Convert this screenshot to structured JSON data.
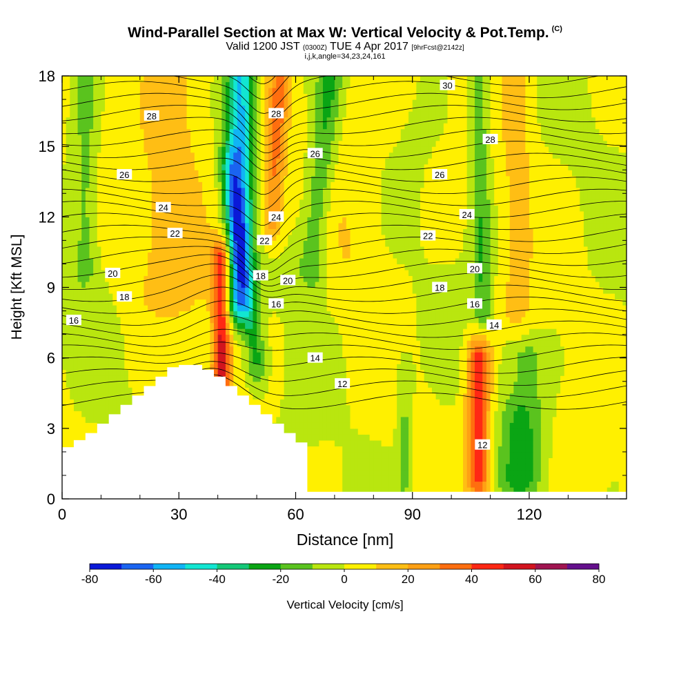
{
  "header": {
    "title": "Wind-Parallel Section at Max W: Vertical Velocity & Pot.Temp.",
    "title_badge": "(C)",
    "subtitle_valid": "Valid 1200 JST",
    "subtitle_utc": "(0300Z)",
    "subtitle_date": "TUE 4 Apr 2017",
    "subtitle_fcst": "[9hrFcst@2142z]",
    "indices": "i,j,k,angle=34,23,24,161"
  },
  "chart_data": {
    "type": "heatmap",
    "title": "Wind-Parallel Section at Max W: Vertical Velocity & Pot.Temp.",
    "xlabel": "Distance [nm]",
    "ylabel": "Height [Kft MSL]",
    "xlim": [
      0,
      145
    ],
    "ylim": [
      0,
      18
    ],
    "x_ticks": [
      "0",
      "30",
      "60",
      "90",
      "120"
    ],
    "x_tick_values": [
      0,
      30,
      60,
      90,
      120
    ],
    "y_ticks": [
      "0",
      "3",
      "6",
      "9",
      "12",
      "15",
      "18"
    ],
    "y_tick_values": [
      0,
      3,
      6,
      9,
      12,
      15,
      18
    ],
    "colorbar": {
      "label": "Vertical Velocity [cm/s]",
      "tick_labels": [
        "-80",
        "-60",
        "-40",
        "-20",
        "0",
        "20",
        "40",
        "60",
        "80"
      ],
      "levels": [
        -80,
        -70,
        -60,
        -50,
        -40,
        -30,
        -20,
        -10,
        0,
        10,
        20,
        30,
        40,
        50,
        60,
        70,
        80
      ],
      "colors": [
        "#0a19d8",
        "#1a64f0",
        "#10b4f5",
        "#12e6d2",
        "#14c878",
        "#0aa514",
        "#5ac31e",
        "#b9e60f",
        "#fff000",
        "#ffbe14",
        "#ffa014",
        "#ff6e0f",
        "#ff2814",
        "#d2141e",
        "#a01450",
        "#640f8c"
      ]
    },
    "terrain": {
      "x": [
        0,
        3,
        3,
        6,
        6,
        9,
        9,
        12,
        12,
        15,
        15,
        18,
        18,
        21,
        21,
        24,
        24,
        27,
        27,
        30,
        30,
        33,
        33,
        36,
        36,
        39,
        39,
        42,
        42,
        45,
        45,
        48,
        48,
        51,
        51,
        54,
        54,
        57,
        57,
        60,
        60,
        63,
        63,
        145
      ],
      "height_kft": [
        2.2,
        2.2,
        2.5,
        2.5,
        2.8,
        2.8,
        3.2,
        3.2,
        3.6,
        3.6,
        4.0,
        4.0,
        4.4,
        4.4,
        4.8,
        4.8,
        5.2,
        5.2,
        5.6,
        5.6,
        5.7,
        5.7,
        5.7,
        5.7,
        5.5,
        5.5,
        5.2,
        5.2,
        4.8,
        4.8,
        4.4,
        4.4,
        4.0,
        4.0,
        3.6,
        3.6,
        3.2,
        3.2,
        2.8,
        2.8,
        2.4,
        2.4,
        0.3,
        0.3
      ]
    },
    "w_features": [
      {
        "x": 45,
        "x_top": 46,
        "y0": 8.5,
        "y1": 18,
        "hw": 3.5,
        "value": -55
      },
      {
        "x": 50,
        "x_top": 43,
        "y0": 6,
        "y1": 14,
        "hw": 2.5,
        "value": -25
      },
      {
        "x": 64,
        "x_top": 69,
        "y0": 10,
        "y1": 18,
        "hw": 3.5,
        "value": -22
      },
      {
        "x": 41,
        "x_top": 41,
        "y0": 5.5,
        "y1": 10,
        "hw": 2.5,
        "value": 55
      },
      {
        "x": 54,
        "x_top": 56,
        "y0": 12,
        "y1": 18,
        "hw": 2.5,
        "value": 30
      },
      {
        "x": 29,
        "x_top": 29,
        "y0": 9,
        "y1": 18,
        "hw": 9,
        "value": 15
      },
      {
        "x": 107,
        "x_top": 107,
        "y0": 1,
        "y1": 6,
        "hw": 3,
        "value": 45
      },
      {
        "x": 118,
        "x_top": 118,
        "y0": 1,
        "y1": 6,
        "hw": 5,
        "value": -25
      },
      {
        "x": 117,
        "x_top": 117,
        "y0": 5,
        "y1": 18,
        "hw": 4,
        "value": 12
      },
      {
        "x": 108,
        "x_top": 107,
        "y0": 8,
        "y1": 18,
        "hw": 2.5,
        "value": -20
      },
      {
        "x": 6,
        "x_top": 6,
        "y0": 10,
        "y1": 18,
        "hw": 3,
        "value": -15
      },
      {
        "x": 88,
        "x_top": 88,
        "y0": 1,
        "y1": 5,
        "hw": 2,
        "value": -15
      },
      {
        "x": 76,
        "x_top": 76,
        "y0": 10,
        "y1": 18,
        "hw": 8,
        "value": 6
      }
    ],
    "theta_contours": {
      "units": "C",
      "levels": [
        12,
        14,
        16,
        18,
        20,
        22,
        24,
        26,
        28,
        30
      ],
      "labels": [
        {
          "text": "30",
          "x": 99,
          "y": 17.6
        },
        {
          "text": "28",
          "x": 23,
          "y": 16.3
        },
        {
          "text": "28",
          "x": 55,
          "y": 16.4
        },
        {
          "text": "28",
          "x": 110,
          "y": 15.3
        },
        {
          "text": "26",
          "x": 16,
          "y": 13.8
        },
        {
          "text": "26",
          "x": 65,
          "y": 14.7
        },
        {
          "text": "26",
          "x": 97,
          "y": 13.8
        },
        {
          "text": "24",
          "x": 26,
          "y": 12.4
        },
        {
          "text": "24",
          "x": 55,
          "y": 12.0
        },
        {
          "text": "24",
          "x": 104,
          "y": 12.1
        },
        {
          "text": "22",
          "x": 29,
          "y": 11.3
        },
        {
          "text": "22",
          "x": 52,
          "y": 11.0
        },
        {
          "text": "22",
          "x": 94,
          "y": 11.2
        },
        {
          "text": "20",
          "x": 13,
          "y": 9.6
        },
        {
          "text": "20",
          "x": 58,
          "y": 9.3
        },
        {
          "text": "20",
          "x": 106,
          "y": 9.8
        },
        {
          "text": "18",
          "x": 16,
          "y": 8.6
        },
        {
          "text": "18",
          "x": 51,
          "y": 9.5
        },
        {
          "text": "18",
          "x": 97,
          "y": 9.0
        },
        {
          "text": "16",
          "x": 3,
          "y": 7.6
        },
        {
          "text": "16",
          "x": 55,
          "y": 8.3
        },
        {
          "text": "16",
          "x": 106,
          "y": 8.3
        },
        {
          "text": "14",
          "x": 65,
          "y": 6.0
        },
        {
          "text": "14",
          "x": 111,
          "y": 7.4
        },
        {
          "text": "12",
          "x": 72,
          "y": 4.9
        },
        {
          "text": "12",
          "x": 108,
          "y": 2.3
        }
      ]
    }
  }
}
